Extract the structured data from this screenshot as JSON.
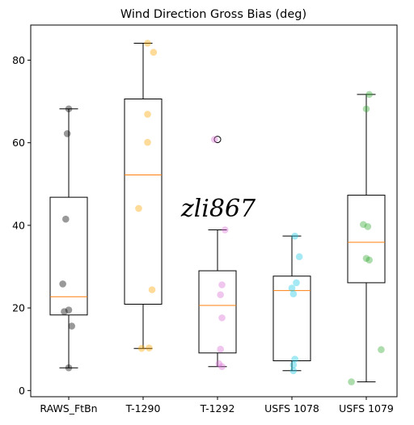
{
  "chart_data": {
    "type": "box",
    "title": "Wind Direction Gross Bias (deg)",
    "xlabel": "",
    "ylabel": "",
    "ylim": [
      -1.5,
      88.5
    ],
    "yticks": [
      0,
      20,
      40,
      60,
      80
    ],
    "ytick_labels": [
      "0",
      "20",
      "40",
      "60",
      "80"
    ],
    "grid": false,
    "watermark": "zli867",
    "median_color": "#ff7f0e",
    "series": [
      {
        "category": "RAWS_FtBn",
        "color": "#000000",
        "q1": 18.3,
        "median": 22.7,
        "q3": 46.8,
        "whisker_low": 5.5,
        "whisker_high": 68.2,
        "fliers": [],
        "points": [
          [
            0.0,
            68.2
          ],
          [
            -0.02,
            62.2
          ],
          [
            -0.04,
            41.5
          ],
          [
            -0.08,
            25.8
          ],
          [
            -0.06,
            19.1
          ],
          [
            0.0,
            19.5
          ],
          [
            0.04,
            15.6
          ],
          [
            0.0,
            5.5
          ]
        ]
      },
      {
        "category": "T-1290",
        "color": "#ffa500",
        "q1": 20.9,
        "median": 52.2,
        "q3": 70.6,
        "whisker_low": 10.2,
        "whisker_high": 84.1,
        "fliers": [],
        "points": [
          [
            0.06,
            84.1
          ],
          [
            0.14,
            81.9
          ],
          [
            0.06,
            66.9
          ],
          [
            0.06,
            60.1
          ],
          [
            -0.06,
            44.1
          ],
          [
            0.12,
            24.4
          ],
          [
            -0.02,
            10.2
          ],
          [
            0.08,
            10.3
          ]
        ]
      },
      {
        "category": "T-1292",
        "color": "#da70d6",
        "q1": 9.1,
        "median": 20.6,
        "q3": 29.0,
        "whisker_low": 5.8,
        "whisker_high": 38.9,
        "fliers": [
          60.8
        ],
        "points": [
          [
            -0.04,
            60.8
          ],
          [
            0.1,
            38.9
          ],
          [
            0.06,
            25.6
          ],
          [
            0.04,
            23.2
          ],
          [
            0.06,
            17.6
          ],
          [
            0.04,
            10.0
          ],
          [
            0.02,
            6.5
          ],
          [
            0.06,
            5.8
          ]
        ]
      },
      {
        "category": "USFS 1078",
        "color": "#1ec8e6",
        "q1": 7.2,
        "median": 24.2,
        "q3": 27.7,
        "whisker_low": 4.8,
        "whisker_high": 37.4,
        "fliers": [],
        "points": [
          [
            0.04,
            37.4
          ],
          [
            0.1,
            32.4
          ],
          [
            0.06,
            26.1
          ],
          [
            0.0,
            24.8
          ],
          [
            0.02,
            23.4
          ],
          [
            0.04,
            7.6
          ],
          [
            0.02,
            6.2
          ],
          [
            0.02,
            4.8
          ]
        ]
      },
      {
        "category": "USFS 1079",
        "color": "#32a832",
        "q1": 26.1,
        "median": 35.9,
        "q3": 47.3,
        "whisker_low": 2.1,
        "whisker_high": 71.7,
        "fliers": [],
        "points": [
          [
            0.04,
            71.7
          ],
          [
            0.0,
            68.2
          ],
          [
            -0.04,
            40.2
          ],
          [
            0.02,
            39.7
          ],
          [
            0.0,
            32.0
          ],
          [
            0.04,
            31.6
          ],
          [
            0.2,
            9.9
          ],
          [
            -0.2,
            2.1
          ]
        ]
      }
    ]
  }
}
